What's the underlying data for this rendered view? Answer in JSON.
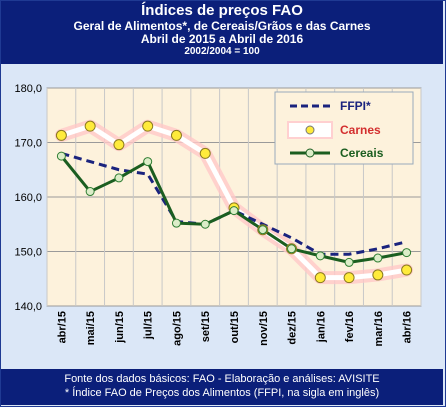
{
  "header": {
    "line1": "Índices de preços FAO",
    "line2": "Geral de Alimentos*,  de Cereais/Grãos  e das Carnes",
    "line3": "Abril  de 2015 a Abril  de 2016",
    "line4": "2002/2004 = 100"
  },
  "footer": {
    "line1": "Fonte dos dados básicos: FAO - Elaboração e análises: AVISITE",
    "line2": "* Índice FAO de Preços dos Alimentos (FFPI, na sigla em inglês)"
  },
  "chart_data": {
    "type": "line",
    "categories": [
      "abr/15",
      "mai/15",
      "jun/15",
      "jul/15",
      "ago/15",
      "set/15",
      "out/15",
      "nov/15",
      "dez/15",
      "jan/16",
      "fev/16",
      "mar/16",
      "abr/16"
    ],
    "ylim": [
      140,
      180
    ],
    "yticks": [
      "140,0",
      "150,0",
      "160,0",
      "170,0",
      "180,0"
    ],
    "grid": true,
    "legend_position": "top-right",
    "series": [
      {
        "name": "FFPI*",
        "color": "#1a237e",
        "values": [
          168.0,
          166.5,
          165.0,
          164.2,
          155.5,
          155.0,
          157.5,
          155.0,
          152.5,
          149.5,
          149.5,
          150.5,
          151.8
        ]
      },
      {
        "name": "Carnes",
        "color": "#d32f2f",
        "values": [
          171.3,
          173.0,
          169.6,
          173.0,
          171.3,
          168.0,
          158.0,
          154.0,
          150.5,
          145.2,
          145.2,
          145.7,
          146.6
        ]
      },
      {
        "name": "Cereais",
        "color": "#1b5e20",
        "values": [
          167.5,
          161.0,
          163.5,
          166.5,
          155.2,
          155.0,
          157.5,
          154.0,
          150.5,
          149.2,
          148.0,
          148.8,
          149.8
        ]
      }
    ]
  }
}
